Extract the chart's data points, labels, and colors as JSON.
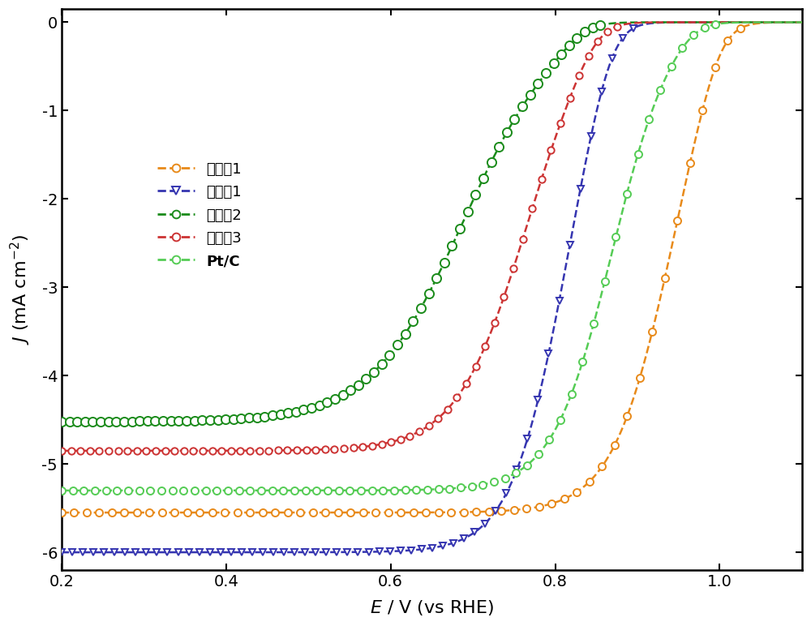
{
  "xlabel": "E / V (vs RHE)",
  "ylabel": "$J$ (mA cm$^{-2}$)",
  "xlim": [
    0.2,
    1.1
  ],
  "ylim": [
    -6.2,
    0.15
  ],
  "xticks": [
    0.2,
    0.4,
    0.6,
    0.8,
    1.0
  ],
  "yticks": [
    0,
    -1,
    -2,
    -3,
    -4,
    -5,
    -6
  ],
  "curves": [
    {
      "label": "实施例1",
      "color": "#E88A1A",
      "marker": "o",
      "halfwave": 0.938,
      "k": 28.0,
      "limiting": -5.55,
      "onset": 1.005
    },
    {
      "label": "对比例1",
      "color": "#3535B0",
      "marker": "v",
      "halfwave": 0.81,
      "k": 30.0,
      "limiting": -6.0,
      "onset": 0.875
    },
    {
      "label": "对比例2",
      "color": "#1A8B1A",
      "marker": "o",
      "halfwave": 0.688,
      "k": 18.0,
      "limiting": -4.52,
      "onset": 0.835
    },
    {
      "label": "对比例3",
      "color": "#CC3333",
      "marker": "o",
      "halfwave": 0.762,
      "k": 24.0,
      "limiting": -4.85,
      "onset": 0.855
    },
    {
      "label": "Pt/C",
      "color": "#55CC55",
      "marker": "o",
      "halfwave": 0.868,
      "k": 28.0,
      "limiting": -5.3,
      "onset": 0.975
    }
  ],
  "background_color": "#ffffff",
  "legend_fontsize": 13,
  "axis_fontsize": 16,
  "tick_fontsize": 14
}
